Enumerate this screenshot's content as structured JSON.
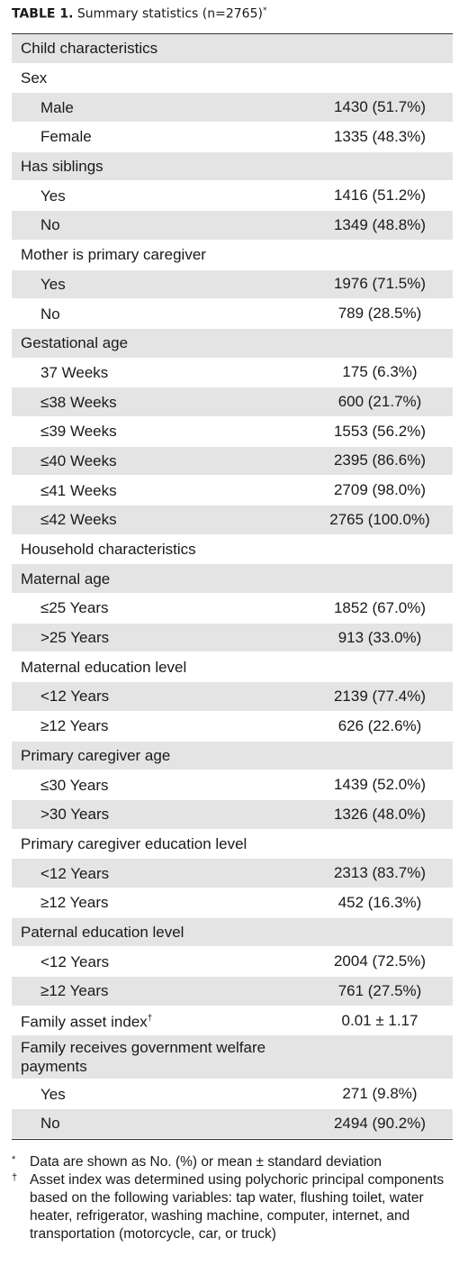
{
  "title": {
    "label": "TABLE 1.",
    "caption": "Summary statistics (n=2765)",
    "note": "*"
  },
  "table": {
    "rows": [
      {
        "label": "Child characteristics"
      },
      {
        "label": "Sex",
        "items": [
          {
            "label": "Male",
            "value": "1430 (51.7%)"
          },
          {
            "label": "Female",
            "value": "1335 (48.3%)"
          }
        ]
      },
      {
        "label": "Has siblings",
        "items": [
          {
            "label": "Yes",
            "value": "1416 (51.2%)"
          },
          {
            "label": "No",
            "value": "1349 (48.8%)"
          }
        ]
      },
      {
        "label": "Mother is primary caregiver",
        "items": [
          {
            "label": "Yes",
            "value": "1976 (71.5%)"
          },
          {
            "label": "No",
            "value": "789 (28.5%)"
          }
        ]
      },
      {
        "label": "Gestational age",
        "items": [
          {
            "label": "37 Weeks",
            "value": "175 (6.3%)"
          },
          {
            "label": "≤38 Weeks",
            "value": "600 (21.7%)"
          },
          {
            "label": "≤39 Weeks",
            "value": "1553 (56.2%)"
          },
          {
            "label": "≤40 Weeks",
            "value": "2395 (86.6%)"
          },
          {
            "label": "≤41 Weeks",
            "value": "2709 (98.0%)"
          },
          {
            "label": "≤42 Weeks",
            "value": "2765 (100.0%)"
          }
        ]
      },
      {
        "label": "Household characteristics"
      },
      {
        "label": "Maternal age",
        "items": [
          {
            "label": "≤25 Years",
            "value": "1852 (67.0%)"
          },
          {
            "label": ">25 Years",
            "value": "913 (33.0%)"
          }
        ]
      },
      {
        "label": "Maternal education level",
        "items": [
          {
            "label": "<12 Years",
            "value": "2139 (77.4%)"
          },
          {
            "label": "≥12 Years",
            "value": "626 (22.6%)"
          }
        ]
      },
      {
        "label": "Primary caregiver age",
        "items": [
          {
            "label": "≤30 Years",
            "value": "1439 (52.0%)"
          },
          {
            "label": ">30 Years",
            "value": "1326 (48.0%)"
          }
        ]
      },
      {
        "label": "Primary caregiver education level",
        "items": [
          {
            "label": "<12 Years",
            "value": "2313 (83.7%)"
          },
          {
            "label": "≥12 Years",
            "value": "452 (16.3%)"
          }
        ]
      },
      {
        "label": "Paternal education level",
        "items": [
          {
            "label": "<12 Years",
            "value": "2004 (72.5%)"
          },
          {
            "label": "≥12 Years",
            "value": "761 (27.5%)"
          }
        ]
      },
      {
        "label": "Family asset index",
        "note": "†",
        "value": "0.01 ± 1.17"
      },
      {
        "label": "Family receives government welfare payments",
        "items": [
          {
            "label": "Yes",
            "value": "271 (9.8%)"
          },
          {
            "label": "No",
            "value": "2494 (90.2%)"
          }
        ]
      }
    ]
  },
  "footnotes": [
    {
      "mark": "*",
      "text": "Data are shown as No. (%) or mean ± standard deviation"
    },
    {
      "mark": "†",
      "text": "Asset index was determined using polychoric principal components based on the following variables: tap water, flushing toilet, water heater, refrigerator, washing machine, computer, internet, and transportation (motorcycle, car, or truck)"
    }
  ]
}
